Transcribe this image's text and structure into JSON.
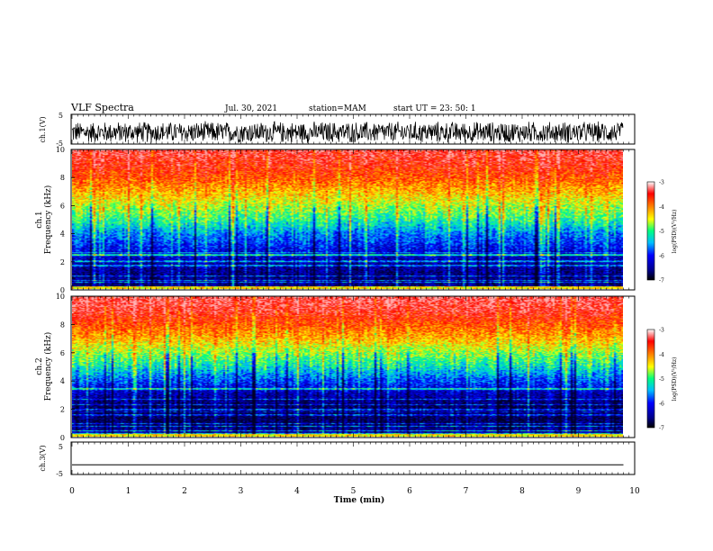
{
  "header": {
    "title": "VLF Spectra",
    "date": "Jul. 30, 2021",
    "station": "station=MAM",
    "start": "start  UT  =  23: 50: 1"
  },
  "chart_data": [
    {
      "type": "line",
      "title": "",
      "ylabel": "ch.1(V)",
      "ylim": [
        -5,
        5
      ],
      "yticks": [
        "5",
        "-5"
      ],
      "description_series": [
        {
          "values": [
            2.5,
            -1.2,
            1.8,
            -2.4,
            0.9,
            2.6,
            -1.9,
            1.4,
            -2.5,
            2.2,
            -0.8,
            1.6,
            -2.2,
            2.4,
            -1.5,
            0.6,
            2.7,
            -2.3,
            1.1,
            -1.8
          ]
        }
      ],
      "x": [
        0,
        9.8
      ]
    },
    {
      "type": "heatmap",
      "ylabel_1": "ch.1",
      "ylabel_2": "Frequency (kHz)",
      "ylim": [
        0,
        10
      ],
      "yticks": [
        "0",
        "2",
        "4",
        "6",
        "8",
        "10"
      ],
      "xlim": [
        0,
        10
      ],
      "colorbar": {
        "label": "log(PSD)(V²/Hz)",
        "range": [
          -7,
          -3
        ],
        "ticks": [
          "-3",
          "-4",
          "-5",
          "-6",
          "-7"
        ]
      },
      "profile_by_freq_khz": {
        "freq": [
          0,
          1,
          2,
          3,
          4,
          5,
          6,
          7,
          8,
          9,
          10
        ],
        "log_psd": [
          -6.6,
          -6.6,
          -6.4,
          -6.0,
          -5.6,
          -5.0,
          -4.6,
          -4.2,
          -3.8,
          -3.5,
          -3.3
        ]
      }
    },
    {
      "type": "heatmap",
      "ylabel_1": "ch.2",
      "ylabel_2": "Frequency (kHz)",
      "ylim": [
        0,
        10
      ],
      "yticks": [
        "0",
        "2",
        "4",
        "6",
        "8",
        "10"
      ],
      "xlim": [
        0,
        10
      ],
      "colorbar": {
        "label": "log(PSD)(V²/Hz)",
        "range": [
          -7,
          -3
        ],
        "ticks": [
          "-3",
          "-4",
          "-5",
          "-6",
          "-7"
        ]
      },
      "profile_by_freq_khz": {
        "freq": [
          0,
          1,
          2,
          3,
          4,
          5,
          6,
          7,
          8,
          9,
          10
        ],
        "log_psd": [
          -6.4,
          -6.8,
          -6.8,
          -6.4,
          -5.8,
          -5.2,
          -4.7,
          -4.2,
          -3.8,
          -3.4,
          -3.2
        ]
      }
    },
    {
      "type": "line",
      "ylabel": "ch.3(V)",
      "ylim": [
        -5,
        5
      ],
      "yticks": [
        "5",
        "-5"
      ],
      "series": [
        {
          "values": [
            -2,
            -2
          ]
        }
      ],
      "x": [
        0,
        9.8
      ],
      "xlim": [
        0,
        10
      ],
      "xlabel": "Time (min)",
      "xticks": [
        "0",
        "1",
        "2",
        "3",
        "4",
        "5",
        "6",
        "7",
        "8",
        "9",
        "10"
      ]
    }
  ],
  "colors": {
    "scale": [
      "#000080",
      "#0000ff",
      "#0080ff",
      "#00ffff",
      "#80ff80",
      "#ffff00",
      "#ff8000",
      "#ff0000",
      "#ff8080"
    ]
  }
}
